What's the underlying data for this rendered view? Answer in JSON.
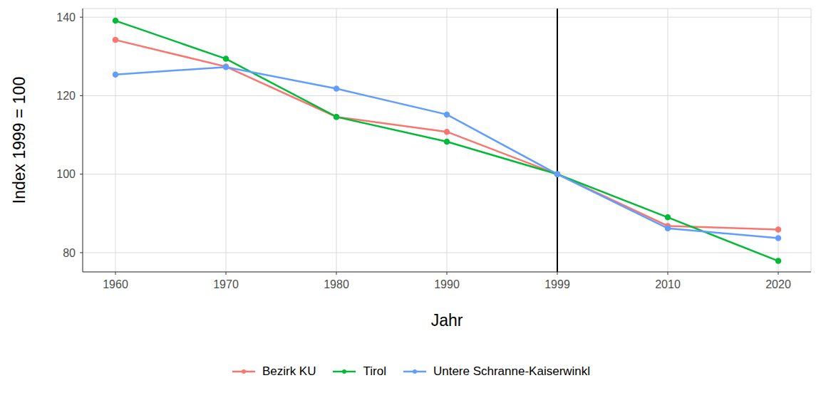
{
  "chart_data": {
    "type": "line",
    "x_label": "Jahr",
    "y_label": "Index 1999 = 100",
    "categories": [
      "1960",
      "1970",
      "1980",
      "1990",
      "1999",
      "2010",
      "2020"
    ],
    "series": [
      {
        "name": "Bezirk KU",
        "color": "#F8766D",
        "values": [
          134.2,
          127.4,
          114.6,
          110.8,
          100,
          86.8,
          85.9
        ]
      },
      {
        "name": "Tirol",
        "color": "#00BA38",
        "values": [
          139.1,
          129.4,
          114.6,
          108.3,
          100,
          89.0,
          77.9
        ]
      },
      {
        "name": "Untere Schranne-Kaiserwinkl",
        "color": "#619CFF",
        "values": [
          125.4,
          127.3,
          121.8,
          115.2,
          100,
          86.2,
          83.7
        ]
      }
    ],
    "ylim": [
      75.1,
      142.2
    ],
    "yticks": [
      80,
      100,
      120,
      140
    ],
    "grid": true,
    "legend": "bottom",
    "marker": "circle",
    "vline": "1999"
  }
}
